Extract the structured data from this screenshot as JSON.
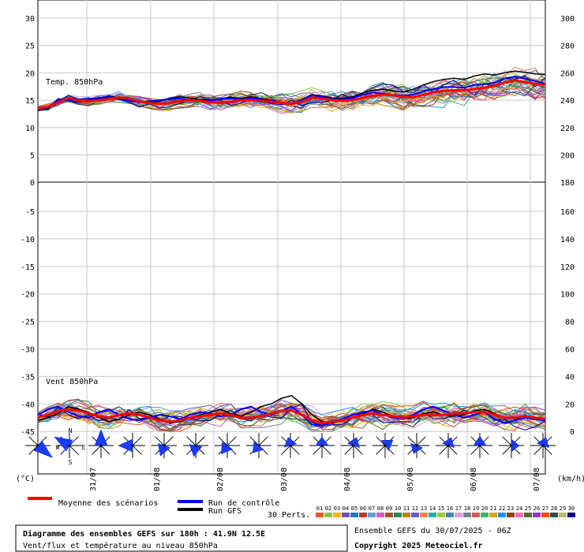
{
  "chart_data": {
    "type": "line",
    "panels": [
      {
        "id": "temp",
        "label": "Temp. 850hPa",
        "left_ticks": [
          "30",
          "25",
          "20",
          "15",
          "10",
          "5",
          "0"
        ],
        "right_ticks": [
          "300",
          "280",
          "260",
          "240",
          "220",
          "200",
          "180"
        ],
        "ylim": [
          0,
          30
        ],
        "mean": [
          13.5,
          13.8,
          14.6,
          15.4,
          14.9,
          14.8,
          15.0,
          15.2,
          15.5,
          15.3,
          14.8,
          14.5,
          14.3,
          14.5,
          14.8,
          15.0,
          14.9,
          14.6,
          14.5,
          14.7,
          15.0,
          15.0,
          14.9,
          14.7,
          14.5,
          14.3,
          14.7,
          15.5,
          15.3,
          15.0,
          14.9,
          15.0,
          15.4,
          15.8,
          16.0,
          15.9,
          15.6,
          15.5,
          16.0,
          16.4,
          16.7,
          16.8,
          16.8,
          17.0,
          17.3,
          17.6,
          18.2,
          18.6,
          18.3,
          18.0,
          17.8
        ],
        "control": [
          13.3,
          13.6,
          15.2,
          15.0,
          14.7,
          15.1,
          15.4,
          15.6,
          15.2,
          14.9,
          14.6,
          14.8,
          15.0,
          15.2,
          15.3,
          15.0,
          14.8,
          14.9,
          15.2,
          15.3,
          15.1,
          15.4,
          15.2,
          14.9,
          14.6,
          14.4,
          15.0,
          15.9,
          15.6,
          15.2,
          15.1,
          15.4,
          16.0,
          16.4,
          16.2,
          16.0,
          15.8,
          16.0,
          16.6,
          17.0,
          17.4,
          17.4,
          17.3,
          17.8,
          17.9,
          18.2,
          19.0,
          19.3,
          18.9,
          18.5,
          18.0
        ],
        "gfs": [
          13.1,
          13.4,
          15.1,
          14.9,
          14.6,
          14.9,
          15.2,
          15.8,
          15.4,
          15.0,
          14.7,
          14.5,
          14.8,
          15.3,
          15.6,
          15.4,
          15.1,
          15.0,
          15.3,
          15.5,
          15.3,
          15.6,
          15.3,
          15.0,
          14.6,
          14.3,
          15.1,
          16.0,
          15.8,
          15.4,
          15.3,
          15.6,
          16.3,
          16.8,
          17.0,
          16.7,
          16.5,
          17.0,
          17.8,
          18.4,
          18.8,
          19.0,
          18.8,
          19.4,
          19.8,
          19.6,
          20.0,
          20.3,
          20.1,
          19.8,
          19.7
        ]
      },
      {
        "id": "wind",
        "label": "Vent 850hPa",
        "left_ticks": [
          "-5",
          "-10",
          "-15",
          "-20",
          "-25",
          "-30",
          "-35",
          "-40",
          "-45"
        ],
        "right_ticks": [
          "160",
          "140",
          "120",
          "100",
          "80",
          "60",
          "40",
          "20",
          "0"
        ],
        "ylim": [
          0,
          180
        ],
        "mean": [
          10,
          12,
          15,
          16,
          15,
          13,
          11,
          10,
          12,
          13,
          12,
          10,
          8,
          7,
          8,
          10,
          11,
          12,
          13,
          12,
          10,
          10,
          11,
          13,
          15,
          15,
          12,
          8,
          6,
          7,
          8,
          10,
          12,
          13,
          12,
          11,
          10,
          11,
          12,
          12,
          12,
          13,
          13,
          14,
          14,
          12,
          10,
          10,
          11,
          10,
          9
        ],
        "control": [
          12,
          16,
          18,
          14,
          11,
          10,
          14,
          16,
          12,
          9,
          8,
          10,
          12,
          11,
          9,
          12,
          14,
          13,
          11,
          12,
          16,
          18,
          14,
          12,
          15,
          18,
          12,
          5,
          4,
          7,
          9,
          12,
          14,
          15,
          12,
          10,
          9,
          12,
          16,
          18,
          15,
          12,
          10,
          12,
          14,
          9,
          6,
          8,
          10,
          9,
          8
        ],
        "gfs": [
          8,
          10,
          13,
          18,
          16,
          14,
          10,
          7,
          9,
          12,
          14,
          12,
          9,
          6,
          7,
          10,
          12,
          14,
          16,
          13,
          11,
          14,
          18,
          20,
          24,
          26,
          20,
          12,
          7,
          6,
          8,
          10,
          13,
          16,
          14,
          11,
          9,
          10,
          13,
          14,
          12,
          11,
          12,
          15,
          16,
          13,
          10,
          9,
          10,
          9,
          8
        ]
      }
    ],
    "x_ticks": [
      "31/07",
      "01/08",
      "02/08",
      "03/08",
      "04/08",
      "05/08",
      "06/08",
      "07/08"
    ],
    "left_unit": "(°C)",
    "right_unit": "(km/h)",
    "wind_roses": [
      {
        "dir": 130,
        "len": 24
      },
      {
        "dir": 300,
        "len": 22
      },
      {
        "dir": 0,
        "len": 20
      },
      {
        "dir": 270,
        "len": 18
      },
      {
        "dir": 200,
        "len": 14
      },
      {
        "dir": 190,
        "len": 14
      },
      {
        "dir": 215,
        "len": 13
      },
      {
        "dir": 220,
        "len": 12
      },
      {
        "dir": 345,
        "len": 11
      },
      {
        "dir": 0,
        "len": 11
      },
      {
        "dir": 20,
        "len": 11
      },
      {
        "dir": 55,
        "len": 12
      },
      {
        "dir": 200,
        "len": 11
      },
      {
        "dir": 20,
        "len": 11
      },
      {
        "dir": 0,
        "len": 12
      },
      {
        "dir": 90,
        "len": 10
      },
      {
        "dir": 20,
        "len": 11
      }
    ],
    "compass": {
      "n": "N",
      "s": "S",
      "w": "W",
      "e": "E"
    }
  },
  "legend": {
    "mean": "Moyenne des scénarios",
    "control": "Run de contrôle",
    "gfs": "Run GFS",
    "perts": "30 Perts.",
    "colors": [
      "#e05a2a",
      "#8cc63f",
      "#f7b500",
      "#7a4fb5",
      "#1a7ab8",
      "#c0392b",
      "#5aa0d8",
      "#d35fb7",
      "#a0522d",
      "#2e8b57",
      "#b8860b",
      "#6a5acd",
      "#ff7f50",
      "#20b2aa",
      "#9acd32",
      "#4682b4",
      "#dda0dd",
      "#708090",
      "#cd5c5c",
      "#3cb371",
      "#daa520",
      "#1e90ff",
      "#8b4513",
      "#ff69b4",
      "#556b2f",
      "#9932cc",
      "#ff4500",
      "#2f4f4f",
      "#bdb76b",
      "#00008b"
    ]
  },
  "footer": {
    "title": "Diagramme des ensembles GEFS sur 180h : 41.9N 12.5E",
    "subtitle": "Vent/flux et température au niveau 850hPa",
    "run": "Ensemble GEFS du 30/07/2025 - 06Z",
    "copyright": "Copyright 2025 Meteociel.fr"
  },
  "colors": {
    "mean": "#ff0000",
    "control": "#0000ff",
    "gfs": "#000000",
    "rose": "#1a3cff"
  }
}
